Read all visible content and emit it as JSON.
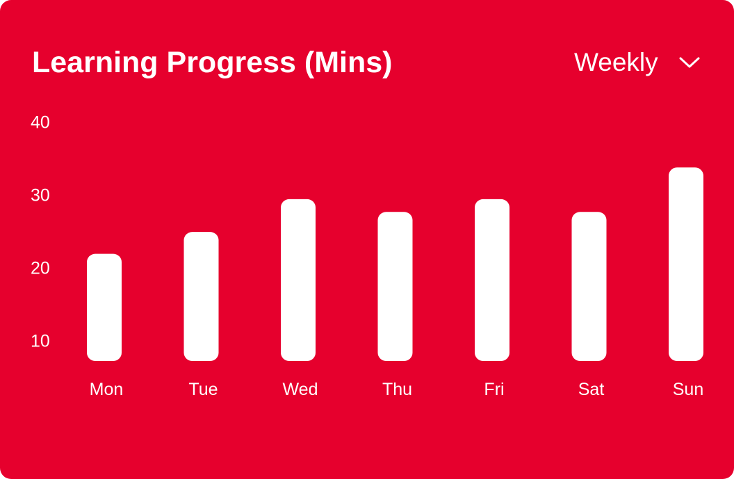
{
  "header": {
    "title": "Learning Progress (Mins)",
    "period": "Weekly",
    "period_icon": "chevron-down-icon"
  },
  "colors": {
    "background": "#e6002d",
    "bars": "#ffffff",
    "text": "#ffffff"
  },
  "chart_data": {
    "type": "bar",
    "title": "Learning Progress (Mins)",
    "xlabel": "",
    "ylabel": "",
    "categories": [
      "Mon",
      "Tue",
      "Wed",
      "Thu",
      "Fri",
      "Sat",
      "Sun"
    ],
    "values": [
      22,
      25,
      29.5,
      27.75,
      29.5,
      27.75,
      33.85
    ],
    "yticks": [
      10,
      20,
      30,
      40
    ],
    "ylim": [
      7.3,
      40
    ],
    "grid": false,
    "legend": "none"
  }
}
